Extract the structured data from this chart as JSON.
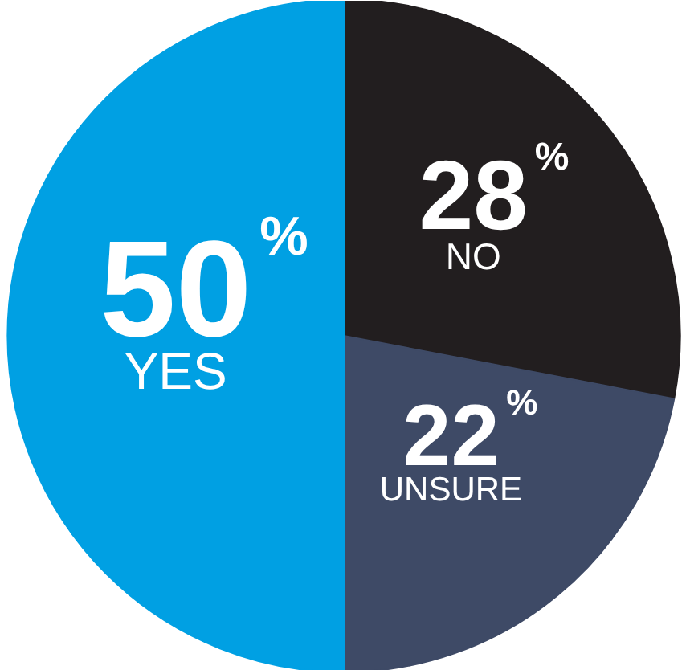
{
  "chart_data": {
    "type": "pie",
    "categories": [
      "NO",
      "UNSURE",
      "YES"
    ],
    "values": [
      28,
      22,
      50
    ],
    "colors": [
      "#221e1f",
      "#3e4a66",
      "#00a0e3"
    ],
    "value_labels": [
      "28%",
      "22%",
      "50%"
    ]
  }
}
